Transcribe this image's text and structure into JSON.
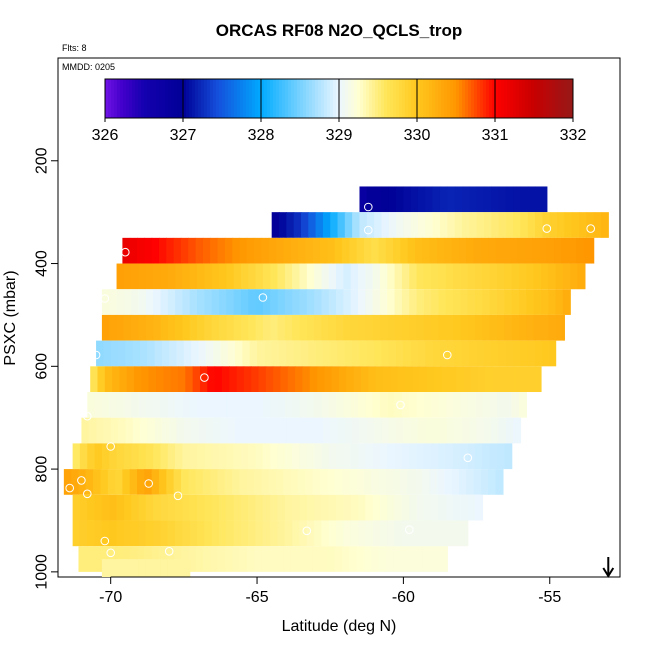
{
  "chart_data": {
    "type": "heatmap",
    "title": "ORCAS RF08 N2O_QCLS_trop",
    "flights_note": "Flts: 8",
    "date_note": "MMDD: 0205",
    "xlabel": "Latitude (deg N)",
    "ylabel": "PSXC (mbar)",
    "xlim": [
      -71.8,
      -52.6
    ],
    "ylim": [
      1010,
      0
    ],
    "x_ticks": [
      -70,
      -65,
      -60,
      -55
    ],
    "x_tick_labels": [
      "-70",
      "-65",
      "-60",
      "-55"
    ],
    "y_ticks": [
      200,
      400,
      600,
      800,
      1000
    ],
    "y_tick_labels": [
      "200",
      "400",
      "600",
      "800",
      "1000"
    ],
    "colorbar": {
      "min": 326,
      "max": 332,
      "ticks": [
        326,
        327,
        328,
        329,
        330,
        331,
        332
      ],
      "tick_labels": [
        "326",
        "327",
        "328",
        "329",
        "330",
        "331",
        "332"
      ]
    },
    "band_height_mbar": 50,
    "rows": [
      {
        "p": 275,
        "x0": -61.5,
        "x1": -55.1,
        "v": [
          [
            -61.5,
            326.3
          ],
          [
            -61.35,
            326.9
          ],
          [
            -60.5,
            327.0
          ],
          [
            -58.5,
            327.2
          ],
          [
            -56.0,
            327.1
          ],
          [
            -55.1,
            327.1
          ]
        ]
      },
      {
        "p": 325,
        "x0": -64.5,
        "x1": -53.0,
        "v": [
          [
            -64.5,
            326.9
          ],
          [
            -63.5,
            327.3
          ],
          [
            -62.5,
            328.0
          ],
          [
            -61.5,
            328.8
          ],
          [
            -60.0,
            329.1
          ],
          [
            -58.0,
            329.4
          ],
          [
            -56.0,
            329.6
          ],
          [
            -55.0,
            329.9
          ],
          [
            -53.0,
            330.2
          ]
        ]
      },
      {
        "p": 375,
        "x0": -69.6,
        "x1": -53.5,
        "v": [
          [
            -69.6,
            331.2
          ],
          [
            -68.5,
            331.0
          ],
          [
            -67.0,
            330.7
          ],
          [
            -65.0,
            330.4
          ],
          [
            -62.5,
            330.1
          ],
          [
            -61.0,
            329.7
          ],
          [
            -59.5,
            330.1
          ],
          [
            -57.5,
            330.3
          ],
          [
            -55.0,
            330.4
          ],
          [
            -53.5,
            330.5
          ]
        ]
      },
      {
        "p": 425,
        "x0": -69.8,
        "x1": -53.8,
        "v": [
          [
            -69.8,
            330.4
          ],
          [
            -68.0,
            330.3
          ],
          [
            -66.0,
            330.0
          ],
          [
            -64.0,
            329.5
          ],
          [
            -62.0,
            328.9
          ],
          [
            -61.0,
            329.1
          ],
          [
            -59.5,
            329.6
          ],
          [
            -57.5,
            329.8
          ],
          [
            -55.5,
            330.0
          ],
          [
            -53.8,
            330.3
          ]
        ]
      },
      {
        "p": 475,
        "x0": -70.3,
        "x1": -54.3,
        "v": [
          [
            -70.3,
            329.2
          ],
          [
            -69.0,
            329.1
          ],
          [
            -67.0,
            328.7
          ],
          [
            -65.0,
            328.4
          ],
          [
            -63.0,
            328.7
          ],
          [
            -61.5,
            329.0
          ],
          [
            -59.5,
            329.5
          ],
          [
            -57.0,
            329.8
          ],
          [
            -55.0,
            330.1
          ],
          [
            -54.3,
            330.3
          ]
        ]
      },
      {
        "p": 525,
        "x0": -70.3,
        "x1": -54.5,
        "v": [
          [
            -70.3,
            330.4
          ],
          [
            -68.5,
            330.2
          ],
          [
            -66.5,
            329.8
          ],
          [
            -64.5,
            329.5
          ],
          [
            -62.0,
            329.8
          ],
          [
            -60.0,
            329.9
          ],
          [
            -58.0,
            330.0
          ],
          [
            -56.0,
            330.2
          ],
          [
            -54.5,
            330.3
          ]
        ]
      },
      {
        "p": 575,
        "x0": -70.5,
        "x1": -54.8,
        "v": [
          [
            -70.5,
            328.6
          ],
          [
            -69.0,
            328.7
          ],
          [
            -67.0,
            329.0
          ],
          [
            -65.0,
            329.4
          ],
          [
            -63.0,
            329.5
          ],
          [
            -61.0,
            329.6
          ],
          [
            -59.0,
            329.8
          ],
          [
            -57.0,
            329.9
          ],
          [
            -54.8,
            330.0
          ]
        ]
      },
      {
        "p": 625,
        "x0": -70.7,
        "x1": -55.3,
        "v": [
          [
            -70.7,
            329.5
          ],
          [
            -70.2,
            330.1
          ],
          [
            -69.0,
            330.5
          ],
          [
            -67.5,
            330.6
          ],
          [
            -66.5,
            331.0
          ],
          [
            -65.0,
            330.8
          ],
          [
            -63.0,
            330.5
          ],
          [
            -61.0,
            330.1
          ],
          [
            -59.0,
            330.0
          ],
          [
            -57.0,
            329.9
          ],
          [
            -55.3,
            329.9
          ]
        ]
      },
      {
        "p": 675,
        "x0": -70.8,
        "x1": -55.8,
        "v": [
          [
            -70.8,
            329.2
          ],
          [
            -69.0,
            329.1
          ],
          [
            -67.0,
            329.0
          ],
          [
            -65.0,
            329.0
          ],
          [
            -63.0,
            329.1
          ],
          [
            -60.5,
            329.3
          ],
          [
            -58.5,
            329.2
          ],
          [
            -56.5,
            329.1
          ],
          [
            -55.8,
            329.2
          ]
        ]
      },
      {
        "p": 725,
        "x0": -71.0,
        "x1": -56.0,
        "v": [
          [
            -71.0,
            329.4
          ],
          [
            -69.5,
            329.3
          ],
          [
            -67.5,
            329.1
          ],
          [
            -65.5,
            329.0
          ],
          [
            -63.0,
            329.0
          ],
          [
            -61.0,
            329.1
          ],
          [
            -59.0,
            329.2
          ],
          [
            -57.0,
            329.1
          ],
          [
            -56.0,
            329.0
          ]
        ]
      },
      {
        "p": 775,
        "x0": -71.3,
        "x1": -56.3,
        "v": [
          [
            -71.3,
            329.5
          ],
          [
            -70.5,
            330.0
          ],
          [
            -69.8,
            329.8
          ],
          [
            -69.0,
            329.7
          ],
          [
            -67.5,
            329.4
          ],
          [
            -65.0,
            329.3
          ],
          [
            -62.5,
            329.1
          ],
          [
            -60.5,
            329.0
          ],
          [
            -58.0,
            328.9
          ],
          [
            -56.3,
            328.8
          ]
        ]
      },
      {
        "p": 825,
        "x0": -71.6,
        "x1": -56.6,
        "v": [
          [
            -71.6,
            330.4
          ],
          [
            -70.8,
            330.2
          ],
          [
            -69.8,
            329.8
          ],
          [
            -68.8,
            330.4
          ],
          [
            -67.5,
            329.6
          ],
          [
            -65.5,
            329.4
          ],
          [
            -63.5,
            329.3
          ],
          [
            -61.5,
            329.2
          ],
          [
            -59.5,
            329.1
          ],
          [
            -57.5,
            328.9
          ],
          [
            -56.6,
            328.8
          ]
        ]
      },
      {
        "p": 875,
        "x0": -71.3,
        "x1": -57.3,
        "v": [
          [
            -71.3,
            329.9
          ],
          [
            -70.0,
            330.1
          ],
          [
            -68.5,
            329.8
          ],
          [
            -66.5,
            329.6
          ],
          [
            -64.0,
            329.4
          ],
          [
            -61.5,
            329.3
          ],
          [
            -59.5,
            329.1
          ],
          [
            -57.3,
            329.0
          ]
        ]
      },
      {
        "p": 925,
        "x0": -71.3,
        "x1": -57.8,
        "v": [
          [
            -71.3,
            329.9
          ],
          [
            -70.0,
            330.0
          ],
          [
            -68.5,
            329.9
          ],
          [
            -66.5,
            329.6
          ],
          [
            -64.0,
            329.4
          ],
          [
            -62.0,
            329.2
          ],
          [
            -60.0,
            329.1
          ],
          [
            -57.8,
            329.1
          ]
        ]
      },
      {
        "p": 975,
        "x0": -71.1,
        "x1": -58.5,
        "v": [
          [
            -71.1,
            329.5
          ],
          [
            -69.5,
            329.5
          ],
          [
            -67.5,
            329.4
          ],
          [
            -65.0,
            329.3
          ],
          [
            -62.5,
            329.3
          ],
          [
            -60.5,
            329.2
          ],
          [
            -58.5,
            329.2
          ]
        ]
      },
      {
        "p": 1000,
        "x0": -70.3,
        "x1": -67.3,
        "v": [
          [
            -70.3,
            329.4
          ],
          [
            -67.3,
            329.4
          ]
        ]
      }
    ],
    "points": [
      [
        -61.2,
        290
      ],
      [
        -61.2,
        335
      ],
      [
        -55.1,
        332
      ],
      [
        -53.6,
        332
      ],
      [
        -69.5,
        378
      ],
      [
        -70.2,
        468
      ],
      [
        -64.8,
        466
      ],
      [
        -70.5,
        578
      ],
      [
        -58.5,
        578
      ],
      [
        -66.8,
        622
      ],
      [
        -60.1,
        675
      ],
      [
        -70.8,
        697
      ],
      [
        -70.0,
        756
      ],
      [
        -57.8,
        778
      ],
      [
        -71.0,
        822
      ],
      [
        -71.4,
        837
      ],
      [
        -70.8,
        848
      ],
      [
        -68.7,
        828
      ],
      [
        -67.7,
        852
      ],
      [
        -63.3,
        920
      ],
      [
        -70.2,
        940
      ],
      [
        -70.0,
        963
      ],
      [
        -68.0,
        960
      ],
      [
        -59.8,
        918
      ]
    ],
    "arrow_annotation": {
      "x": -53.0,
      "direction": "down"
    }
  }
}
